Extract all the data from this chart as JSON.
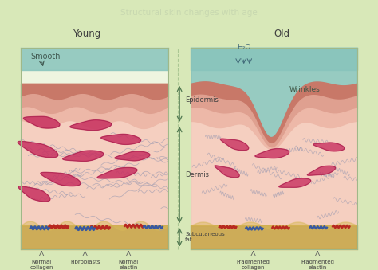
{
  "title": "Structural skin changes with age",
  "title_color": "#c8d8b0",
  "title_bg": "#1e4a30",
  "background_color": "#d8e8b8",
  "young_label": "Young",
  "old_label": "Old",
  "smooth_label": "Smooth",
  "h2o_label": "H₂O",
  "wrinkles_label": "Wrinkles",
  "epidermis_label": "Epidermis",
  "dermis_label": "Dermis",
  "subcut_label": "Subcutaneous\nfat",
  "bottom_labels_young": [
    "Normal\ncollagen",
    "Fibroblasts",
    "Normal\nelastin"
  ],
  "bottom_labels_old": [
    "Fragmented\ncollagen",
    "Fragmented\nelastin"
  ],
  "teal_color": "#88c4bc",
  "teal_dark": "#5a9a90",
  "epi_dark": "#c87868",
  "epi_mid": "#dfa090",
  "epi_light": "#edb8a8",
  "dermis_color": "#f5cfc0",
  "subcut_color": "#c8a040",
  "subcut_light": "#d8b858",
  "fibroblast_color": "#c83060",
  "collagen_color": "#9898b0",
  "blood_red": "#b82820",
  "blood_blue": "#3858a0",
  "panel_border": "#a0b888",
  "arrow_color": "#507850",
  "label_color": "#404040",
  "smooth_color": "#405850",
  "h2o_color": "#406878",
  "wrinkle_color": "#405848"
}
